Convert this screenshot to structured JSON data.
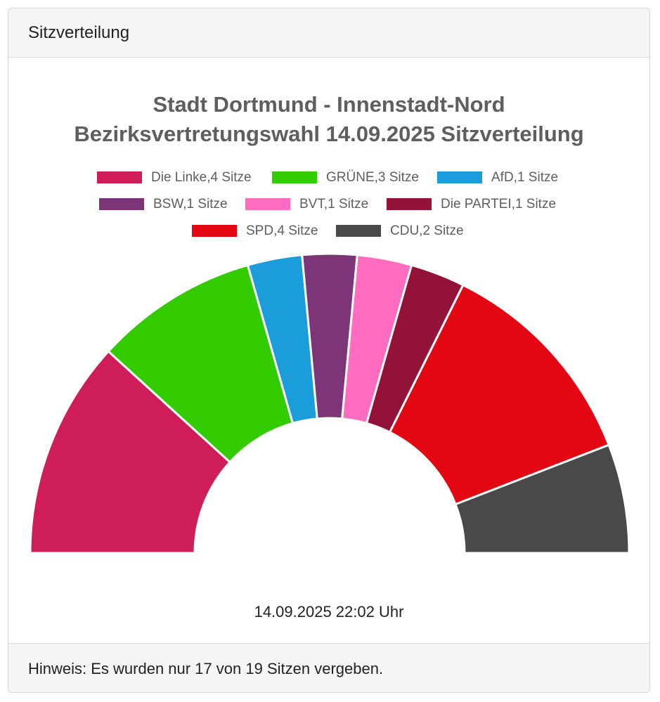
{
  "header": {
    "title": "Sitzverteilung"
  },
  "chart_data": {
    "type": "pie",
    "variant": "semicircle-parliament",
    "title_lines": [
      "Stadt Dortmund - Innenstadt-Nord",
      "Bezirksvertretungswahl 14.09.2025 Sitzverteilung"
    ],
    "legend_position": "top",
    "series": [
      {
        "name": "Die Linke",
        "value": 4,
        "legend_label": "Die Linke,4 Sitze",
        "color": "#cf1d5a"
      },
      {
        "name": "GRÜNE",
        "value": 3,
        "legend_label": "GRÜNE,3 Sitze",
        "color": "#33cc00"
      },
      {
        "name": "AfD",
        "value": 1,
        "legend_label": "AfD,1 Sitze",
        "color": "#1c9ddb"
      },
      {
        "name": "BSW",
        "value": 1,
        "legend_label": "BSW,1 Sitze",
        "color": "#7c3577"
      },
      {
        "name": "BVT",
        "value": 1,
        "legend_label": "BVT,1 Sitze",
        "color": "#fd6cbf"
      },
      {
        "name": "Die PARTEI",
        "value": 1,
        "legend_label": "Die PARTEI,1 Sitze",
        "color": "#931237"
      },
      {
        "name": "SPD",
        "value": 4,
        "legend_label": "SPD,4 Sitze",
        "color": "#e30613"
      },
      {
        "name": "CDU",
        "value": 2,
        "legend_label": "CDU,2 Sitze",
        "color": "#494949"
      }
    ]
  },
  "timestamp": "14.09.2025 22:02 Uhr",
  "footer": {
    "note": "Hinweis: Es wurden nur 17 von 19 Sitzen vergeben."
  }
}
